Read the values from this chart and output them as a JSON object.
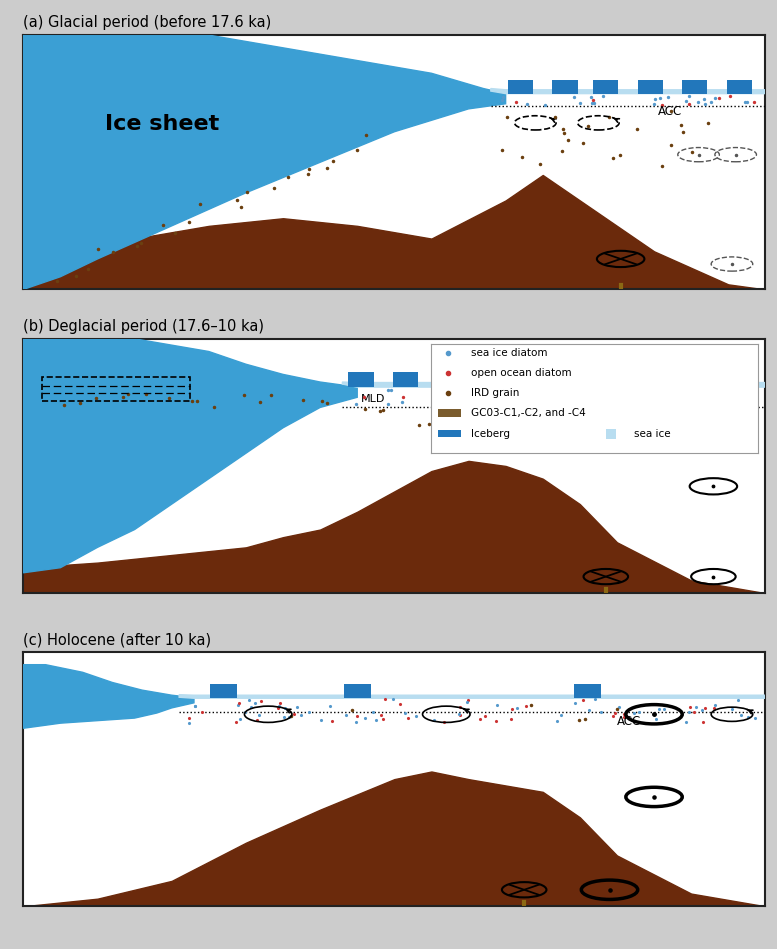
{
  "fig_width": 7.77,
  "fig_height": 9.49,
  "titles": [
    "(a) Glacial period (before 17.6 ka)",
    "(b) Deglacial period (17.6–10 ka)",
    "(c) Holocene (after 10 ka)"
  ],
  "ice_color": "#3b9fd4",
  "sea_ice_color": "#b8ddf0",
  "sediment_color": "#6b2a0c",
  "blue_dot": "#5599cc",
  "red_dot": "#cc3333",
  "brown_dot": "#6b4010",
  "iceberg_color": "#2277bb",
  "gc_color": "#8b6914",
  "panel_bg": "#ffffff",
  "border_color": "#222222",
  "legend_border": "#999999"
}
